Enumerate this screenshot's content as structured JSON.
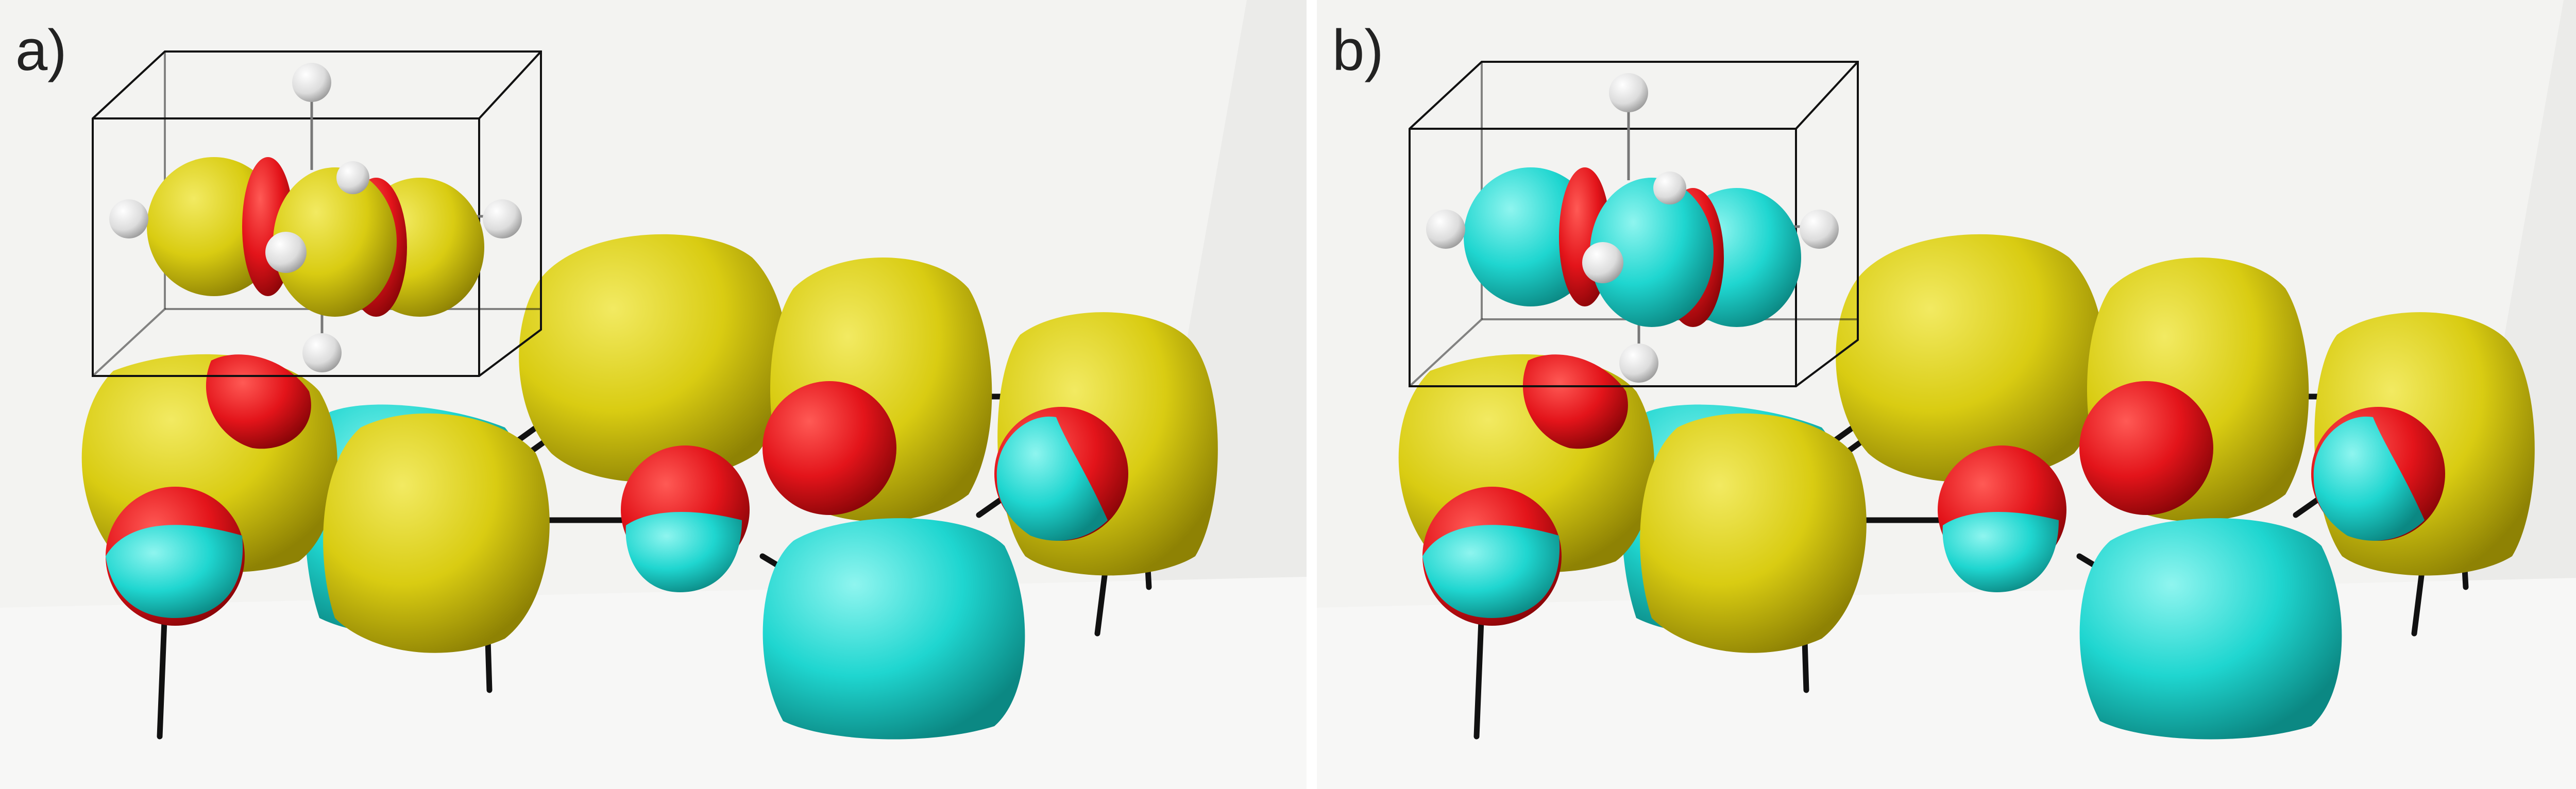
{
  "panels": [
    {
      "label": "a)",
      "lobe_color": "#ddd01c",
      "inset_lobe_color": "#d8cd1a"
    },
    {
      "label": "b)",
      "lobe_color": "#ddd01c",
      "inset_lobe_color": "#1fd6d0"
    }
  ],
  "colors": {
    "positive_lobe": "#ddd01c",
    "negative_lobe": "#1fd6d0",
    "oxygen_lobe": "#e3141a",
    "hydrogen": "#e6e6e6",
    "bond": "#111111",
    "background": "#f3f3f1"
  }
}
